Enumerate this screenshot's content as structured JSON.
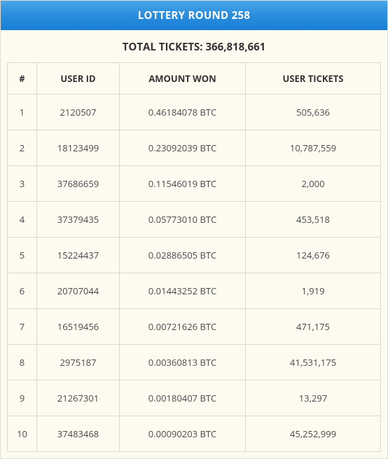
{
  "header": {
    "title": "LOTTERY ROUND 258"
  },
  "subheader": {
    "text": "TOTAL TICKETS: 366,818,661"
  },
  "table": {
    "columns": {
      "num": "#",
      "user_id": "USER ID",
      "amount_won": "AMOUNT WON",
      "user_tickets": "USER TICKETS"
    },
    "rows": [
      {
        "num": "1",
        "user_id": "2120507",
        "amount_won": "0.46184078 BTC",
        "user_tickets": "505,636"
      },
      {
        "num": "2",
        "user_id": "18123499",
        "amount_won": "0.23092039 BTC",
        "user_tickets": "10,787,559"
      },
      {
        "num": "3",
        "user_id": "37686659",
        "amount_won": "0.11546019 BTC",
        "user_tickets": "2,000"
      },
      {
        "num": "4",
        "user_id": "37379435",
        "amount_won": "0.05773010 BTC",
        "user_tickets": "453,518"
      },
      {
        "num": "5",
        "user_id": "15224437",
        "amount_won": "0.02886505 BTC",
        "user_tickets": "124,676"
      },
      {
        "num": "6",
        "user_id": "20707044",
        "amount_won": "0.01443252 BTC",
        "user_tickets": "1,919"
      },
      {
        "num": "7",
        "user_id": "16519456",
        "amount_won": "0.00721626 BTC",
        "user_tickets": "471,175"
      },
      {
        "num": "8",
        "user_id": "2975187",
        "amount_won": "0.00360813 BTC",
        "user_tickets": "41,531,175"
      },
      {
        "num": "9",
        "user_id": "21267301",
        "amount_won": "0.00180407 BTC",
        "user_tickets": "13,297"
      },
      {
        "num": "10",
        "user_id": "37483468",
        "amount_won": "0.00090203 BTC",
        "user_tickets": "45,252,999"
      }
    ]
  },
  "colors": {
    "header_bg_top": "#4ba6e8",
    "header_bg_bottom": "#1a7fd4",
    "header_text": "#ffffff",
    "page_bg": "#fdfaf0",
    "border": "#dedacb",
    "text": "#4a4a4a"
  }
}
